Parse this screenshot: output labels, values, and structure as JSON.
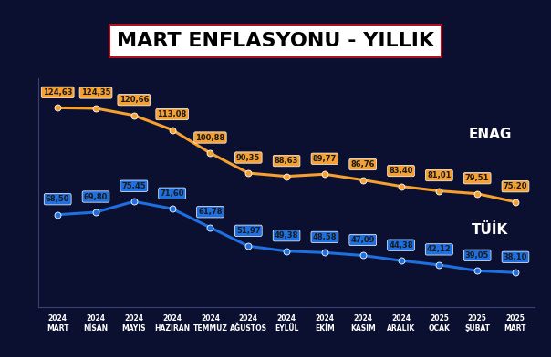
{
  "chart_data": {
    "type": "line",
    "title": "MART ENFLASYONU - YILLIK",
    "categories": [
      "2024\nMART",
      "2024\nNİSAN",
      "2024\nMAYIS",
      "2024\nHAZİRAN",
      "2024\nTEMMUZ",
      "2024\nAĞUSTOS",
      "2024\nEYLÜL",
      "2024\nEKİM",
      "2024\nKASIM",
      "2024\nARALIK",
      "2025\nOCAK",
      "2025\nŞUBAT",
      "2025\nMART"
    ],
    "series": [
      {
        "name": "ENAG",
        "color": "#f5a030",
        "marker": "o",
        "line_style": "solid",
        "values": [
          124.63,
          124.35,
          120.66,
          113.08,
          100.88,
          90.35,
          88.63,
          89.77,
          86.76,
          83.4,
          81.01,
          79.51,
          75.2
        ],
        "value_labels": [
          "124,63",
          "124,35",
          "120,66",
          "113,08",
          "100,88",
          "90,35",
          "88,63",
          "89,77",
          "86,76",
          "83,40",
          "81,01",
          "79,51",
          "75,20"
        ]
      },
      {
        "name": "TÜİK",
        "color": "#1e6fe0",
        "marker": "o",
        "line_style": "solid",
        "values": [
          68.5,
          69.8,
          75.45,
          71.6,
          61.78,
          51.97,
          49.38,
          48.58,
          47.09,
          44.38,
          42.12,
          39.05,
          38.1
        ],
        "value_labels": [
          "68,50",
          "69,80",
          "75,45",
          "71,60",
          "61,78",
          "51,97",
          "49,38",
          "48,58",
          "47,09",
          "44,38",
          "42,12",
          "39,05",
          "38,10"
        ]
      }
    ],
    "ylim": [
      20,
      140
    ],
    "yticks": [],
    "grid": false,
    "data_labels": true,
    "tick_labels": "x"
  }
}
